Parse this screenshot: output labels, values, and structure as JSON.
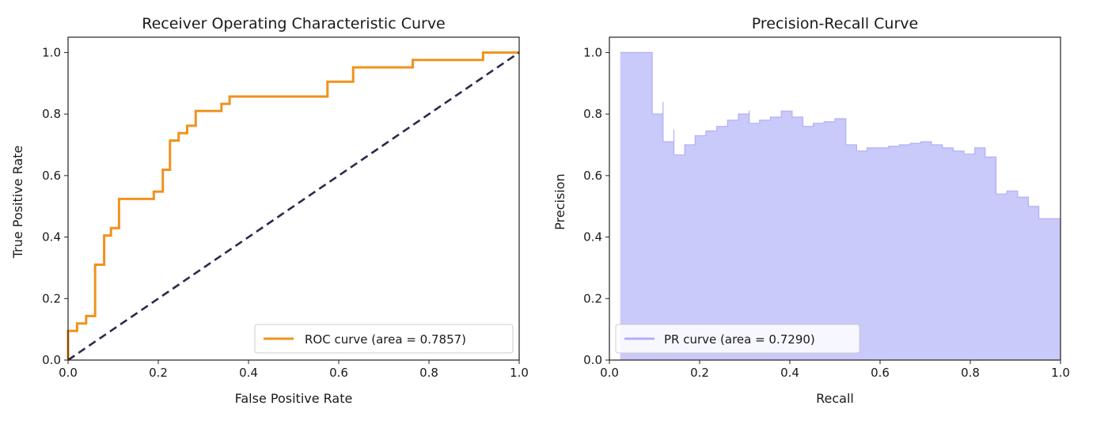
{
  "chart_data": [
    {
      "type": "line",
      "title": "Receiver Operating Characteristic Curve",
      "xlabel": "False Positive Rate",
      "ylabel": "True Positive Rate",
      "xlim": [
        0.0,
        1.0
      ],
      "ylim": [
        0.0,
        1.05
      ],
      "xticks": [
        "0.0",
        "0.2",
        "0.4",
        "0.6",
        "0.8",
        "1.0"
      ],
      "yticks": [
        "0.0",
        "0.2",
        "0.4",
        "0.6",
        "0.8",
        "1.0"
      ],
      "grid": false,
      "legend_position": "lower-right",
      "series": [
        {
          "name": "ROC curve (area = 0.7857)",
          "color": "#f0921e",
          "style": "solid",
          "points": [
            [
              0.0,
              0.0
            ],
            [
              0.0,
              0.095
            ],
            [
              0.02,
              0.095
            ],
            [
              0.02,
              0.119
            ],
            [
              0.04,
              0.119
            ],
            [
              0.04,
              0.143
            ],
            [
              0.06,
              0.143
            ],
            [
              0.06,
              0.31
            ],
            [
              0.08,
              0.31
            ],
            [
              0.08,
              0.405
            ],
            [
              0.095,
              0.405
            ],
            [
              0.095,
              0.429
            ],
            [
              0.113,
              0.429
            ],
            [
              0.113,
              0.524
            ],
            [
              0.19,
              0.524
            ],
            [
              0.19,
              0.548
            ],
            [
              0.21,
              0.548
            ],
            [
              0.21,
              0.619
            ],
            [
              0.226,
              0.619
            ],
            [
              0.226,
              0.714
            ],
            [
              0.245,
              0.714
            ],
            [
              0.245,
              0.738
            ],
            [
              0.264,
              0.738
            ],
            [
              0.264,
              0.762
            ],
            [
              0.283,
              0.762
            ],
            [
              0.283,
              0.81
            ],
            [
              0.34,
              0.81
            ],
            [
              0.34,
              0.833
            ],
            [
              0.358,
              0.833
            ],
            [
              0.358,
              0.857
            ],
            [
              0.575,
              0.857
            ],
            [
              0.575,
              0.905
            ],
            [
              0.632,
              0.905
            ],
            [
              0.632,
              0.952
            ],
            [
              0.764,
              0.952
            ],
            [
              0.764,
              0.976
            ],
            [
              0.92,
              0.976
            ],
            [
              0.92,
              1.0
            ],
            [
              1.0,
              1.0
            ]
          ]
        },
        {
          "name": "",
          "color": "#2b2a4c",
          "style": "dashed",
          "points": [
            [
              0.0,
              0.0
            ],
            [
              1.0,
              1.0
            ]
          ]
        }
      ]
    },
    {
      "type": "area",
      "title": "Precision-Recall Curve",
      "xlabel": "Recall",
      "ylabel": "Precision",
      "xlim": [
        0.0,
        1.0
      ],
      "ylim": [
        0.0,
        1.05
      ],
      "xticks": [
        "0.0",
        "0.2",
        "0.4",
        "0.6",
        "0.8",
        "1.0"
      ],
      "yticks": [
        "0.0",
        "0.2",
        "0.4",
        "0.6",
        "0.8",
        "1.0"
      ],
      "grid": false,
      "legend_position": "lower-left",
      "series": [
        {
          "name": "PR curve (area = 0.7290)",
          "color": "#b0b0f5",
          "fill": "#c9c9fa",
          "style": "step",
          "points": [
            [
              0.024,
              1.0
            ],
            [
              0.095,
              1.0
            ],
            [
              0.095,
              0.8
            ],
            [
              0.119,
              0.8
            ],
            [
              0.119,
              0.84
            ],
            [
              0.119,
              0.71
            ],
            [
              0.143,
              0.71
            ],
            [
              0.143,
              0.75
            ],
            [
              0.143,
              0.667
            ],
            [
              0.167,
              0.667
            ],
            [
              0.167,
              0.7
            ],
            [
              0.19,
              0.7
            ],
            [
              0.19,
              0.73
            ],
            [
              0.214,
              0.73
            ],
            [
              0.214,
              0.745
            ],
            [
              0.238,
              0.745
            ],
            [
              0.238,
              0.76
            ],
            [
              0.262,
              0.76
            ],
            [
              0.262,
              0.78
            ],
            [
              0.286,
              0.78
            ],
            [
              0.286,
              0.8
            ],
            [
              0.31,
              0.8
            ],
            [
              0.31,
              0.812
            ],
            [
              0.31,
              0.77
            ],
            [
              0.333,
              0.77
            ],
            [
              0.333,
              0.78
            ],
            [
              0.357,
              0.78
            ],
            [
              0.357,
              0.79
            ],
            [
              0.381,
              0.79
            ],
            [
              0.381,
              0.81
            ],
            [
              0.405,
              0.81
            ],
            [
              0.405,
              0.79
            ],
            [
              0.429,
              0.79
            ],
            [
              0.429,
              0.76
            ],
            [
              0.452,
              0.76
            ],
            [
              0.452,
              0.77
            ],
            [
              0.476,
              0.77
            ],
            [
              0.476,
              0.775
            ],
            [
              0.5,
              0.775
            ],
            [
              0.5,
              0.785
            ],
            [
              0.524,
              0.785
            ],
            [
              0.524,
              0.7
            ],
            [
              0.548,
              0.7
            ],
            [
              0.548,
              0.68
            ],
            [
              0.571,
              0.68
            ],
            [
              0.571,
              0.69
            ],
            [
              0.619,
              0.69
            ],
            [
              0.619,
              0.695
            ],
            [
              0.643,
              0.695
            ],
            [
              0.643,
              0.7
            ],
            [
              0.667,
              0.7
            ],
            [
              0.667,
              0.705
            ],
            [
              0.69,
              0.705
            ],
            [
              0.69,
              0.71
            ],
            [
              0.714,
              0.71
            ],
            [
              0.714,
              0.7
            ],
            [
              0.738,
              0.7
            ],
            [
              0.738,
              0.69
            ],
            [
              0.762,
              0.69
            ],
            [
              0.762,
              0.68
            ],
            [
              0.786,
              0.68
            ],
            [
              0.786,
              0.67
            ],
            [
              0.81,
              0.67
            ],
            [
              0.81,
              0.69
            ],
            [
              0.833,
              0.69
            ],
            [
              0.833,
              0.66
            ],
            [
              0.857,
              0.66
            ],
            [
              0.857,
              0.6
            ],
            [
              0.857,
              0.54
            ],
            [
              0.881,
              0.54
            ],
            [
              0.881,
              0.55
            ],
            [
              0.905,
              0.55
            ],
            [
              0.905,
              0.53
            ],
            [
              0.929,
              0.53
            ],
            [
              0.929,
              0.5
            ],
            [
              0.952,
              0.5
            ],
            [
              0.952,
              0.46
            ],
            [
              0.976,
              0.46
            ],
            [
              1.0,
              0.46
            ]
          ]
        }
      ]
    }
  ]
}
